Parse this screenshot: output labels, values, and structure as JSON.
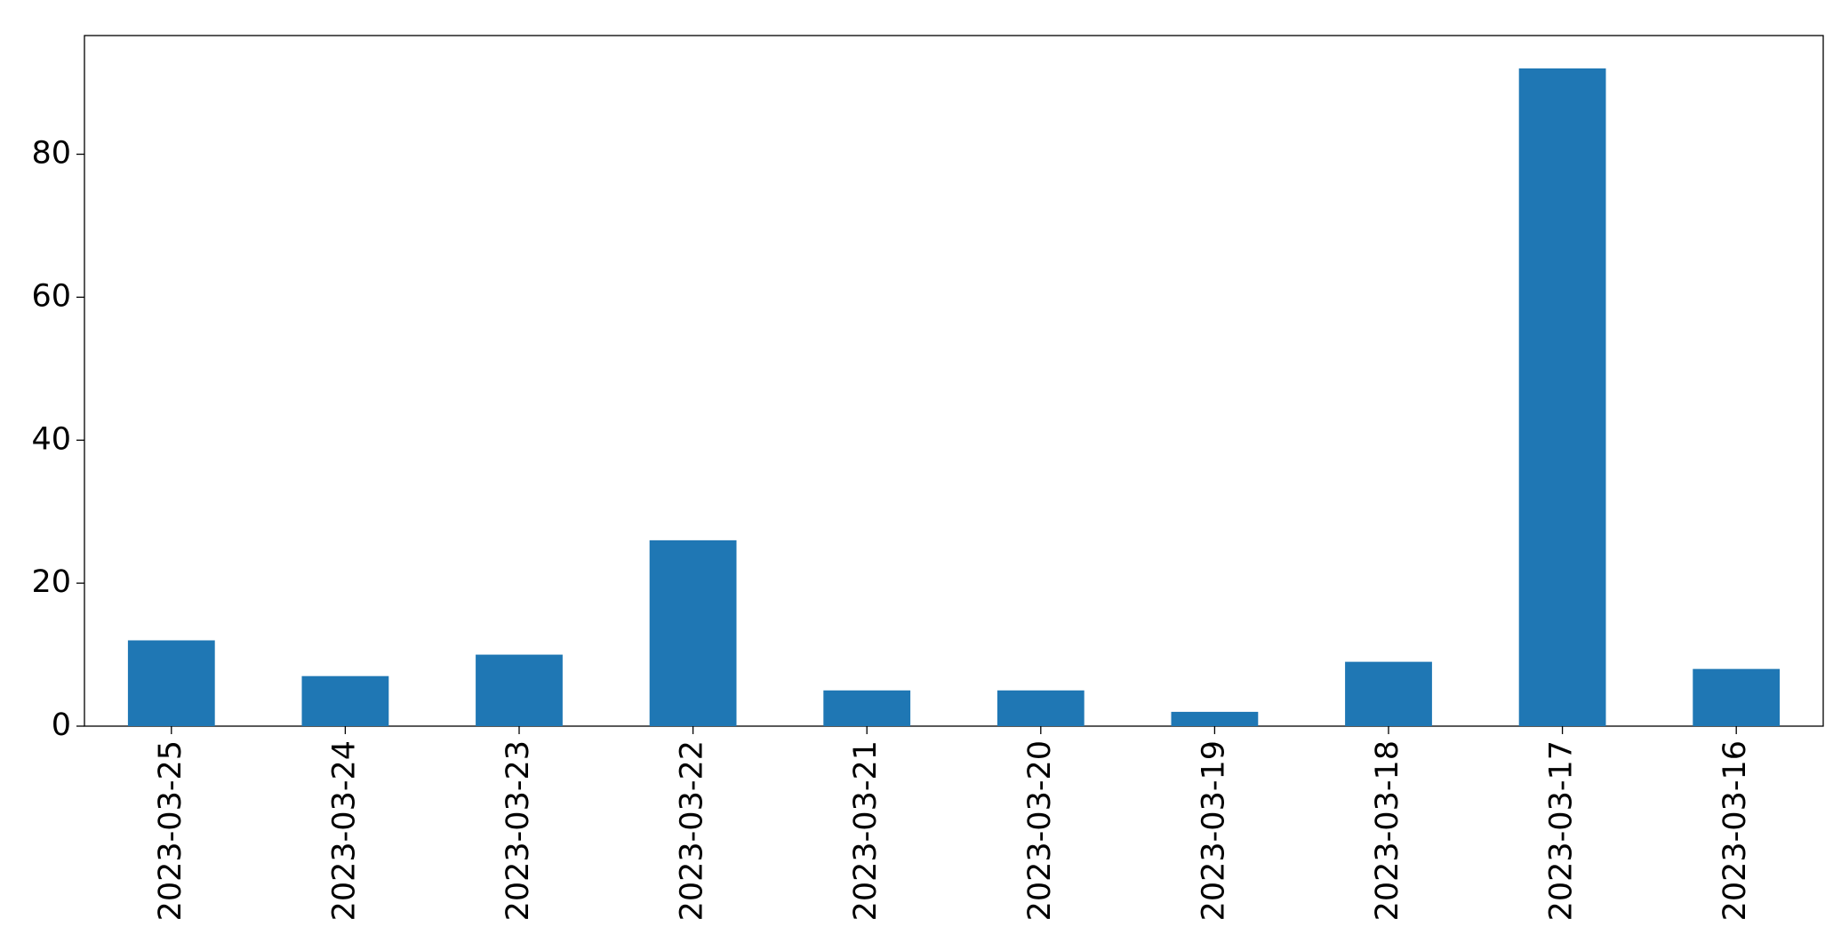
{
  "chart_data": {
    "type": "bar",
    "categories": [
      "2023-03-25",
      "2023-03-24",
      "2023-03-23",
      "2023-03-22",
      "2023-03-21",
      "2023-03-20",
      "2023-03-19",
      "2023-03-18",
      "2023-03-17",
      "2023-03-16"
    ],
    "values": [
      12,
      7,
      10,
      26,
      5,
      5,
      2,
      9,
      92,
      8
    ],
    "color": "#1f77b4",
    "ylim": [
      0,
      96.6
    ],
    "yticks": [
      0,
      20,
      40,
      60,
      80
    ],
    "grid": false
  }
}
